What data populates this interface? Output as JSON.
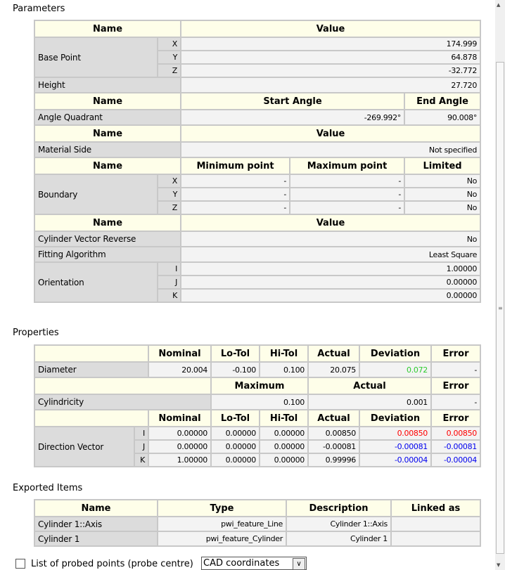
{
  "parameters": {
    "title": "Parameters",
    "h1": {
      "name": "Name",
      "value": "Value"
    },
    "base_point": {
      "label": "Base Point",
      "rows": [
        {
          "axis": "X",
          "value": "174.999"
        },
        {
          "axis": "Y",
          "value": "64.878"
        },
        {
          "axis": "Z",
          "value": "-32.772"
        }
      ]
    },
    "height": {
      "label": "Height",
      "value": "27.720"
    },
    "h2": {
      "name": "Name",
      "start": "Start Angle",
      "end": "End Angle"
    },
    "angle_quadrant": {
      "label": "Angle Quadrant",
      "start": "-269.992°",
      "end": "90.008°"
    },
    "h3": {
      "name": "Name",
      "value": "Value"
    },
    "material_side": {
      "label": "Material Side",
      "value": "Not specified"
    },
    "h4": {
      "name": "Name",
      "min": "Minimum point",
      "max": "Maximum point",
      "limited": "Limited"
    },
    "boundary": {
      "label": "Boundary",
      "rows": [
        {
          "axis": "X",
          "min": "-",
          "max": "-",
          "limited": "No"
        },
        {
          "axis": "Y",
          "min": "-",
          "max": "-",
          "limited": "No"
        },
        {
          "axis": "Z",
          "min": "-",
          "max": "-",
          "limited": "No"
        }
      ]
    },
    "h5": {
      "name": "Name",
      "value": "Value"
    },
    "cylinder_vector_reverse": {
      "label": "Cylinder Vector Reverse",
      "value": "No"
    },
    "fitting_algorithm": {
      "label": "Fitting Algorithm",
      "value": "Least Square"
    },
    "orientation": {
      "label": "Orientation",
      "rows": [
        {
          "axis": "I",
          "value": "1.00000"
        },
        {
          "axis": "J",
          "value": "0.00000"
        },
        {
          "axis": "K",
          "value": "0.00000"
        }
      ]
    }
  },
  "properties": {
    "title": "Properties",
    "h1": {
      "nominal": "Nominal",
      "lo_tol": "Lo-Tol",
      "hi_tol": "Hi-Tol",
      "actual": "Actual",
      "deviation": "Deviation",
      "error": "Error"
    },
    "diameter": {
      "label": "Diameter",
      "nominal": "20.004",
      "lo_tol": "-0.100",
      "hi_tol": "0.100",
      "actual": "20.075",
      "deviation": "0.072",
      "error": "-"
    },
    "h2": {
      "maximum": "Maximum",
      "actual": "Actual",
      "error": "Error"
    },
    "cylindricity": {
      "label": "Cylindricity",
      "maximum": "0.100",
      "actual": "0.001",
      "error": "-"
    },
    "h3": {
      "nominal": "Nominal",
      "lo_tol": "Lo-Tol",
      "hi_tol": "Hi-Tol",
      "actual": "Actual",
      "deviation": "Deviation",
      "error": "Error"
    },
    "direction_vector": {
      "label": "Direction Vector",
      "rows": [
        {
          "axis": "I",
          "nominal": "0.00000",
          "lo_tol": "0.00000",
          "hi_tol": "0.00000",
          "actual": "0.00850",
          "deviation": "0.00850",
          "error": "0.00850"
        },
        {
          "axis": "J",
          "nominal": "0.00000",
          "lo_tol": "0.00000",
          "hi_tol": "0.00000",
          "actual": "-0.00081",
          "deviation": "-0.00081",
          "error": "-0.00081"
        },
        {
          "axis": "K",
          "nominal": "1.00000",
          "lo_tol": "0.00000",
          "hi_tol": "0.00000",
          "actual": "0.99996",
          "deviation": "-0.00004",
          "error": "-0.00004"
        }
      ]
    },
    "colors": {
      "in_tol": "#2ecc2e",
      "out_tol": "#ff0000",
      "negative": "#0000ee"
    }
  },
  "exported": {
    "title": "Exported Items",
    "header": {
      "name": "Name",
      "type": "Type",
      "description": "Description",
      "linked_as": "Linked as"
    },
    "rows": [
      {
        "name": "Cylinder 1::Axis",
        "type": "pwi_feature_Line",
        "description": "Cylinder 1::Axis",
        "linked_as": ""
      },
      {
        "name": "Cylinder 1",
        "type": "pwi_feature_Cylinder",
        "description": "Cylinder 1",
        "linked_as": ""
      }
    ]
  },
  "footer": {
    "probe_label": "List of probed points (probe centre)",
    "probe_checked": false,
    "coord_select": "CAD coordinates"
  }
}
